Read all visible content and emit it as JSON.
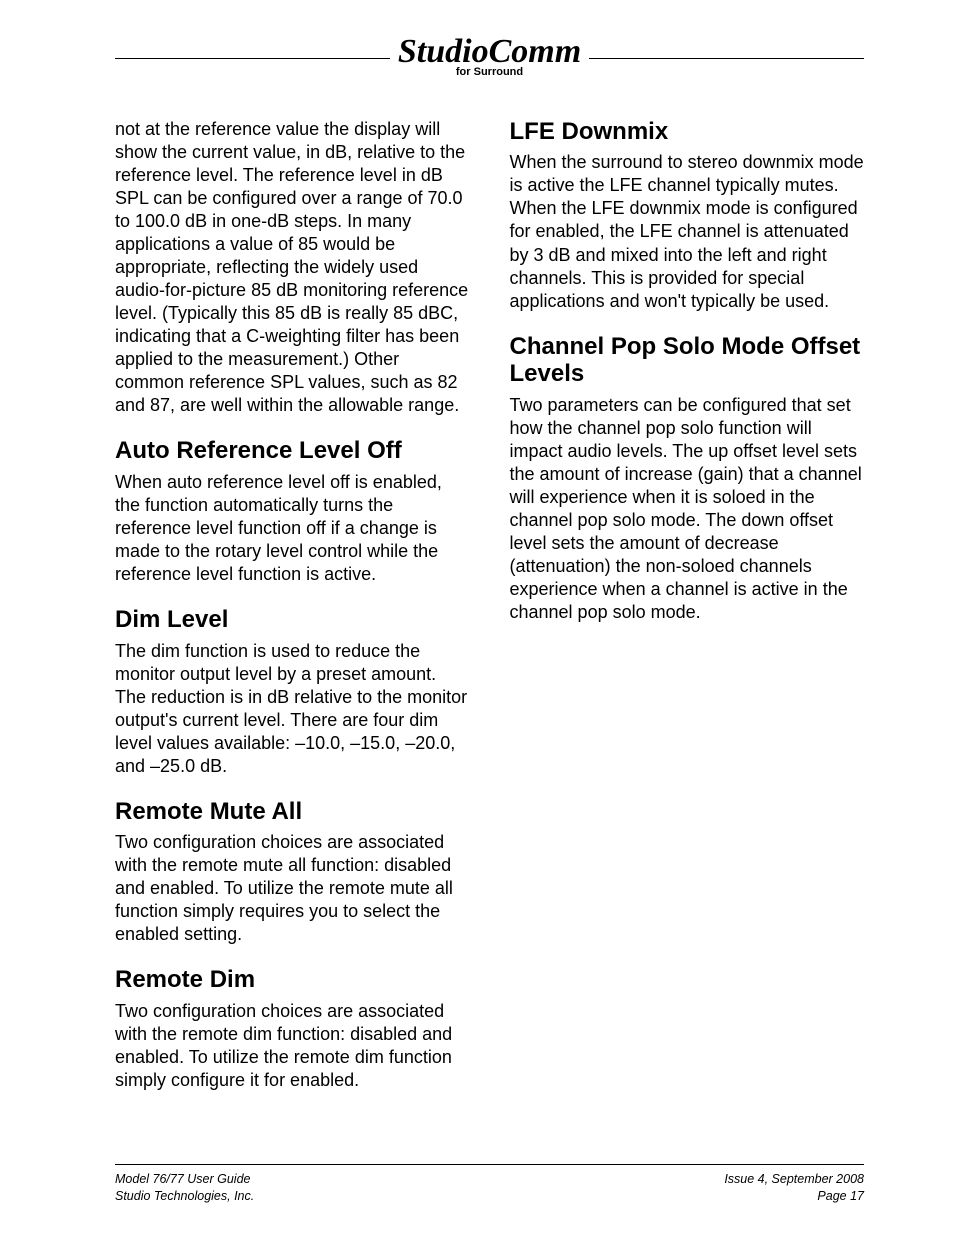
{
  "header": {
    "logo_main": "StudioComm",
    "logo_sub": "for Surround"
  },
  "left_column": {
    "intro_para": "not at the reference value the display will show the current value, in dB, relative to the reference level. The reference level in dB SPL can be configured over a range of 70.0 to 100.0 dB in one-dB steps. In many applications a value of 85 would be appropriate, reflecting the widely used audio-for-picture 85 dB monitoring reference level. (Typically this 85 dB is really 85 dBC, indicating that a C-weighting filter has been applied to the measurement.) Other common reference SPL values, such as 82 and 87, are well within the allowable range.",
    "sections": [
      {
        "heading": "Auto Reference Level Off",
        "body": "When auto reference level off is enabled, the function automatically turns the reference level function off if a change is made to the rotary level control while the reference level function is active."
      },
      {
        "heading": "Dim Level",
        "body": "The dim function is used to reduce the monitor output level by a preset amount. The reduction is in dB relative to the monitor output's current level. There are four dim level values available: –10.0, –15.0, –20.0, and –25.0 dB."
      },
      {
        "heading": "Remote Mute All",
        "body": "Two configuration choices are associated with the remote mute all function: disabled and enabled. To utilize the remote mute all function simply requires you to select the enabled setting."
      },
      {
        "heading": "Remote Dim",
        "body": "Two configuration choices are associated with the remote dim function: disabled and enabled. To utilize the remote dim function simply configure it for enabled."
      }
    ]
  },
  "right_column": {
    "sections": [
      {
        "heading": "LFE Downmix",
        "body": "When the surround to stereo downmix mode is active the LFE channel typically mutes. When the LFE downmix mode is configured for enabled, the LFE channel is attenuated by 3 dB and mixed into the left and right channels. This is provided for special applications and won't typically be used."
      },
      {
        "heading": "Channel Pop Solo Mode Offset Levels",
        "body": "Two parameters can be configured that set how the channel pop solo function will impact audio levels. The up offset level sets the amount of increase (gain) that a channel will experience when it is soloed in the channel pop solo mode. The down offset level sets the amount of decrease (attenuation) the non-soloed channels experience when a channel is active in the channel pop solo mode."
      }
    ]
  },
  "footer": {
    "left_line1": "Model 76/77 User Guide",
    "left_line2": "Studio Technologies, Inc.",
    "right_line1": "Issue 4, September 2008",
    "right_line2": "Page 17"
  }
}
